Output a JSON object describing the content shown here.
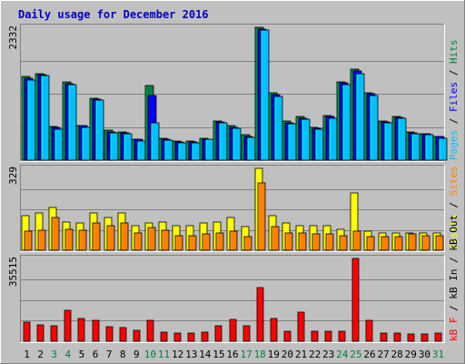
{
  "chart_data": {
    "type": "bar",
    "title": "Daily usage for December 2016",
    "categories": [
      "1",
      "2",
      "3",
      "4",
      "5",
      "6",
      "7",
      "8",
      "9",
      "10",
      "11",
      "12",
      "13",
      "14",
      "15",
      "16",
      "17",
      "18",
      "19",
      "20",
      "21",
      "22",
      "23",
      "24",
      "25",
      "26",
      "27",
      "28",
      "29",
      "30",
      "31"
    ],
    "weekend_days": [
      "3",
      "4",
      "10",
      "11",
      "17",
      "18",
      "24",
      "25",
      "31"
    ],
    "panels": [
      {
        "name": "hits-files-pages",
        "scale_label": "2332",
        "ymax": 2332,
        "right_labels": [
          "Pages",
          "Files",
          "Hits"
        ],
        "series": [
          {
            "name": "Hits",
            "color": "#008040",
            "values": [
              1470,
              1520,
              590,
              1370,
              610,
              1090,
              520,
              500,
              370,
              1310,
              380,
              330,
              330,
              380,
              680,
              600,
              440,
              2332,
              1180,
              680,
              760,
              570,
              780,
              1370,
              1600,
              1180,
              690,
              770,
              490,
              470,
              420
            ]
          },
          {
            "name": "Files",
            "color": "#0000ff",
            "values": [
              1440,
              1500,
              570,
              1340,
              600,
              1070,
              500,
              480,
              360,
              1140,
              370,
              320,
              320,
              370,
              670,
              580,
              420,
              2300,
              1150,
              660,
              740,
              560,
              760,
              1350,
              1560,
              1160,
              670,
              750,
              480,
              460,
              410
            ]
          },
          {
            "name": "Pages",
            "color": "#00c0ff",
            "values": [
              1400,
              1480,
              550,
              1320,
              580,
              1050,
              480,
              460,
              340,
              660,
              350,
              300,
              300,
              360,
              650,
              560,
              400,
              2280,
              1120,
              640,
              720,
              540,
              740,
              1330,
              1520,
              1130,
              650,
              730,
              460,
              440,
              390
            ]
          }
        ]
      },
      {
        "name": "visits-sites",
        "scale_label": "329",
        "ymax": 329,
        "right_labels": [
          "Visits",
          "Sites"
        ],
        "series": [
          {
            "name": "Visits",
            "color": "#ffff00",
            "values": [
              140,
              150,
              170,
              115,
              110,
              150,
              130,
              150,
              100,
              110,
              115,
              100,
              100,
              110,
              115,
              130,
              95,
              329,
              140,
              110,
              100,
              100,
              100,
              85,
              230,
              75,
              70,
              70,
              70,
              70,
              70
            ]
          },
          {
            "name": "Sites",
            "color": "#ff8000",
            "values": [
              75,
              80,
              130,
              85,
              80,
              110,
              100,
              110,
              70,
              90,
              80,
              60,
              60,
              65,
              70,
              75,
              55,
              270,
              95,
              70,
              70,
              65,
              65,
              60,
              75,
              55,
              55,
              55,
              65,
              60,
              60
            ]
          }
        ]
      },
      {
        "name": "kbytes",
        "scale_label": "35515",
        "ymax": 35515,
        "right_labels": [
          "kB F",
          "kB In",
          "kB Out"
        ],
        "series": [
          {
            "name": "kB F",
            "color": "#ff0000",
            "values": [
              8200,
              7000,
              6500,
              13100,
              9900,
              9000,
              6200,
              5800,
              4800,
              9000,
              3800,
              3600,
              3600,
              3800,
              6700,
              9200,
              6500,
              23000,
              9700,
              4400,
              12300,
              4200,
              4200,
              4200,
              35515,
              8900,
              3600,
              3400,
              3000,
              3000,
              3400
            ]
          }
        ]
      }
    ]
  }
}
